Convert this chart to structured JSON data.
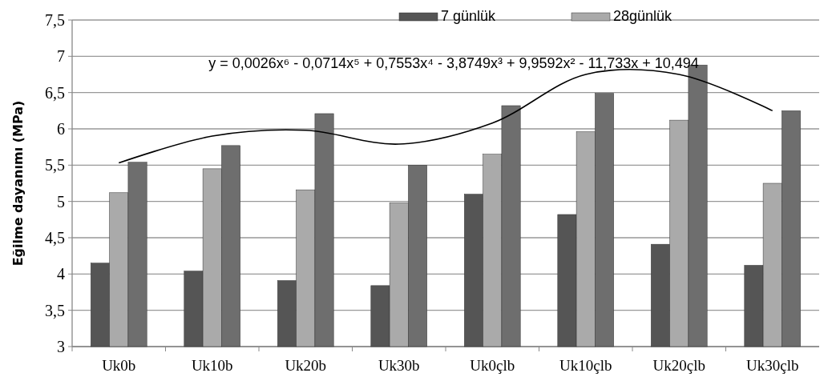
{
  "chart_data": {
    "type": "bar",
    "ylabel": "Eğilme dayanımı (MPa)",
    "categories": [
      "Uk0b",
      "Uk10b",
      "Uk20b",
      "Uk30b",
      "Uk0çlb",
      "Uk10çlb",
      "Uk20çlb",
      "Uk30çlb"
    ],
    "series": [
      {
        "name": "7 günlük",
        "color": "#555555",
        "values": [
          4.15,
          4.04,
          3.91,
          3.84,
          5.1,
          4.82,
          4.41,
          4.12
        ]
      },
      {
        "name": "28günlük",
        "color": "#aaaaaa",
        "values": [
          5.12,
          5.45,
          5.16,
          4.98,
          5.65,
          5.96,
          6.12,
          5.25
        ]
      },
      {
        "color": "#6e6e6e",
        "values": [
          5.54,
          5.77,
          6.21,
          5.5,
          6.32,
          6.49,
          6.88,
          6.25
        ]
      },
      {
        "type": "line",
        "color": "#000000",
        "values": [
          5.53,
          5.9,
          5.98,
          5.79,
          6.08,
          6.75,
          6.75,
          6.25
        ]
      }
    ],
    "ylim": [
      3,
      7.5
    ],
    "yticks": [
      3,
      {
        "value": 3.5,
        "label": "3,5"
      },
      4,
      {
        "value": 4.5,
        "label": "4,5"
      },
      5,
      {
        "value": 5.5,
        "label": "5,5"
      },
      6,
      {
        "value": 6.5,
        "label": "6,5"
      },
      7,
      {
        "value": 7.5,
        "label": "7,5"
      }
    ],
    "grid": "y",
    "legend": "top",
    "annotations": [
      "y = 0,0026x⁶ - 0,0714x⁵ + 0,7553x⁴ - 3,8749x³ + 9,9592x² - 11,733x + 10,494"
    ]
  }
}
